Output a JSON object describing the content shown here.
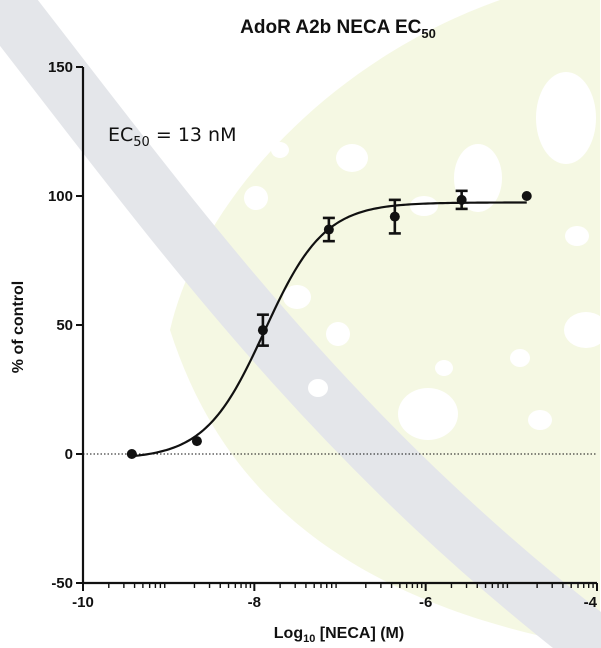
{
  "chart_data": {
    "type": "scatter",
    "title": {
      "main": "AdoR A2b NECA EC",
      "sub": "50"
    },
    "xlabel": {
      "pre": "Log",
      "sub": "10",
      "post": " [NECA] (M)"
    },
    "ylabel": "% of control",
    "annotation": {
      "pre": "EC",
      "sub": "50",
      "post": " = 13 nM"
    },
    "xlim": [
      -10,
      -4
    ],
    "ylim": [
      -50,
      150
    ],
    "x_ticks": [
      -10,
      -8,
      -6,
      -4
    ],
    "y_ticks": [
      -50,
      0,
      50,
      100,
      150
    ],
    "x_minor_log": true,
    "grid": false,
    "reference_line": {
      "y": 0,
      "style": "dotted"
    },
    "points": [
      {
        "x": -9.43,
        "y": 0,
        "err": 0
      },
      {
        "x": -8.67,
        "y": 5,
        "err": 0
      },
      {
        "x": -7.9,
        "y": 48,
        "err": 6
      },
      {
        "x": -7.13,
        "y": 87,
        "err": 4.5
      },
      {
        "x": -6.36,
        "y": 92,
        "err": 6.5
      },
      {
        "x": -5.58,
        "y": 98.5,
        "err": 3.5
      },
      {
        "x": -4.82,
        "y": 100,
        "err": 0
      }
    ],
    "fit": {
      "model": "sigmoidal dose-response",
      "bottom": -2,
      "top": 97.5,
      "log_ec50": -7.88,
      "hill_slope": 1.25,
      "x_range": [
        -9.43,
        -4.82
      ]
    },
    "colors": {
      "points": "#111111",
      "axes": "#111111",
      "background_arc": "#e4e6ea",
      "background_leaf": "#f5f8e3",
      "background_dots": "#ffffff"
    }
  }
}
